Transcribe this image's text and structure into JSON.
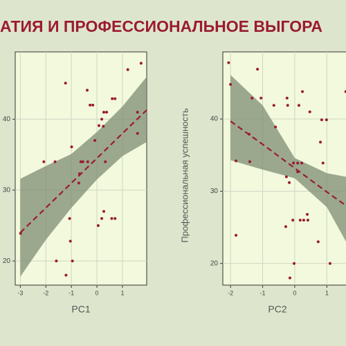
{
  "chart_data": [
    {
      "type": "scatter",
      "title": "АТИЯ И ПРОФЕССИОНАЛЬНОЕ ВЫГОРА",
      "x_label": "PC1",
      "xlim": [
        -3.2,
        1.95
      ],
      "ylim": [
        16.6,
        49.5
      ],
      "xticks": [
        -3,
        -2,
        -1,
        0,
        1
      ],
      "yticks": [
        20,
        30,
        40
      ],
      "grid": true,
      "color": "#9b1b30",
      "band_color": "#7d8c73",
      "x": [
        -2.99,
        -2.08,
        -1.64,
        -1.23,
        -0.38,
        -0.27,
        -0.16,
        -0.99,
        -0.63,
        -0.55,
        -0.36,
        -0.68,
        -0.71,
        0.19,
        0.27,
        0.38,
        0.25,
        -0.08,
        0.08,
        0.6,
        0.71,
        1.59,
        1.21,
        1.73,
        0.33,
        0.27,
        0.19,
        0.58,
        0.71,
        0.05,
        -1.07,
        -1.59,
        -0.96,
        -1.21,
        -1.04,
        1.59
      ],
      "y": [
        23.9,
        34,
        34,
        45.1,
        44.1,
        42,
        42,
        36.1,
        34,
        34,
        34,
        32.3,
        31,
        40,
        41,
        41,
        39,
        37,
        39.1,
        42.9,
        42.9,
        38,
        47,
        47.9,
        34,
        27,
        26,
        26,
        26,
        25,
        26,
        20,
        20,
        18,
        22.8,
        41
      ],
      "fit": {
        "x": [
          -3,
          -2,
          -1,
          0,
          1,
          1.95
        ],
        "y": [
          24,
          27.5,
          31,
          34.5,
          38,
          41.3
        ],
        "lower": [
          17.8,
          23,
          27.5,
          31.5,
          34.8,
          36.8
        ],
        "upper": [
          31.6,
          33.4,
          35.1,
          38.2,
          41.8,
          46
        ]
      }
    },
    {
      "type": "scatter",
      "x_label": "PC2",
      "y_label": "Профессиональная успешность",
      "xlim": [
        -2.24,
        2.2
      ],
      "ylim": [
        17,
        49.3
      ],
      "xticks": [
        -2,
        -1,
        0,
        1
      ],
      "yticks": [
        20,
        30,
        40
      ],
      "grid": true,
      "color": "#9b1b30",
      "band_color": "#7d8c73",
      "x": [
        -2.06,
        -2,
        -1.83,
        -1.83,
        -1.16,
        -1.05,
        -1.33,
        -1.42,
        -1.4,
        -0.65,
        -0.24,
        -0.22,
        0.13,
        0.24,
        0.47,
        0.84,
        0.99,
        -0.6,
        -0.04,
        0.09,
        0.22,
        0.88,
        0.8,
        -0.26,
        -0.17,
        0.09,
        0.39,
        0.41,
        0.28,
        0.17,
        -0.06,
        -0.28,
        0.73,
        -0.02,
        -0.15,
        1.1,
        1.59
      ],
      "y": [
        47.8,
        44.8,
        34.2,
        23.9,
        46.9,
        42.9,
        42.9,
        37.9,
        34.1,
        41.9,
        42.9,
        41.9,
        41.9,
        43.8,
        41,
        39.9,
        39.9,
        38.9,
        33.9,
        33.9,
        33.9,
        33.9,
        36.8,
        32,
        31.2,
        32.7,
        26.8,
        26,
        26,
        26,
        26,
        25.1,
        23,
        20,
        18,
        20,
        43.8
      ],
      "fit": {
        "x": [
          -2,
          -1,
          0,
          1,
          1.6
        ],
        "y": [
          39.7,
          36.5,
          33.2,
          29.9,
          28
        ],
        "lower": [
          34.3,
          33,
          31.8,
          27.8,
          23
        ],
        "upper": [
          46.1,
          41.9,
          34.6,
          32.5,
          32
        ]
      }
    }
  ]
}
